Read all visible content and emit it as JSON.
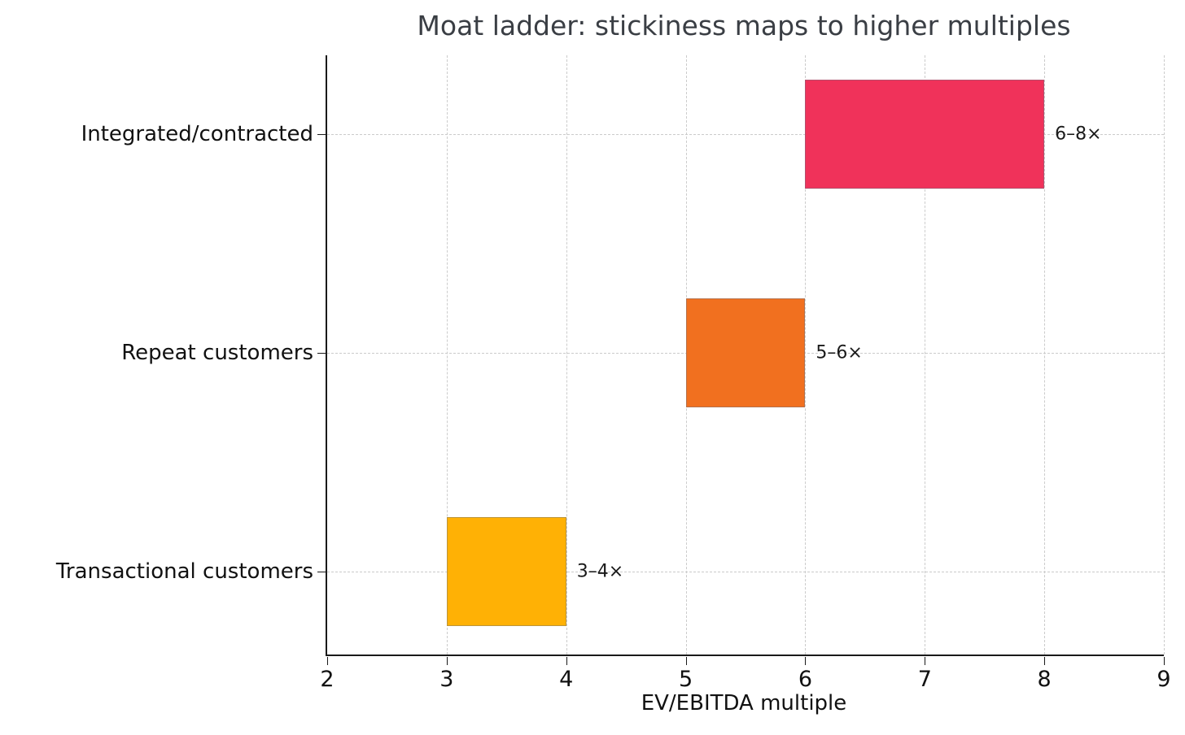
{
  "chart_data": {
    "type": "bar",
    "subtype": "horizontal-range",
    "title": "Moat ladder: stickiness maps to higher multiples",
    "xlabel": "EV/EBITDA multiple",
    "ylabel": "",
    "xlim": [
      2,
      9
    ],
    "xticks": [
      "2",
      "3",
      "4",
      "5",
      "6",
      "7",
      "8",
      "9"
    ],
    "xtick_values": [
      2,
      3,
      4,
      5,
      6,
      7,
      8,
      9
    ],
    "ylim": [
      -0.38,
      2.36
    ],
    "bar_thickness": 0.5,
    "grid": true,
    "grid_style": "dashed",
    "legend": "none",
    "categories": [
      "Integrated/contracted",
      "Repeat customers",
      "Transactional customers"
    ],
    "series": [
      {
        "name": "Integrated/contracted",
        "y": 2,
        "start": 6,
        "end": 8,
        "label": "6–8×",
        "color": "#F0325A"
      },
      {
        "name": "Repeat customers",
        "y": 1,
        "start": 5,
        "end": 6,
        "label": "5–6×",
        "color": "#F1701F"
      },
      {
        "name": "Transactional customers",
        "y": 0,
        "start": 3,
        "end": 4,
        "label": "3–4×",
        "color": "#FFB105"
      }
    ]
  }
}
